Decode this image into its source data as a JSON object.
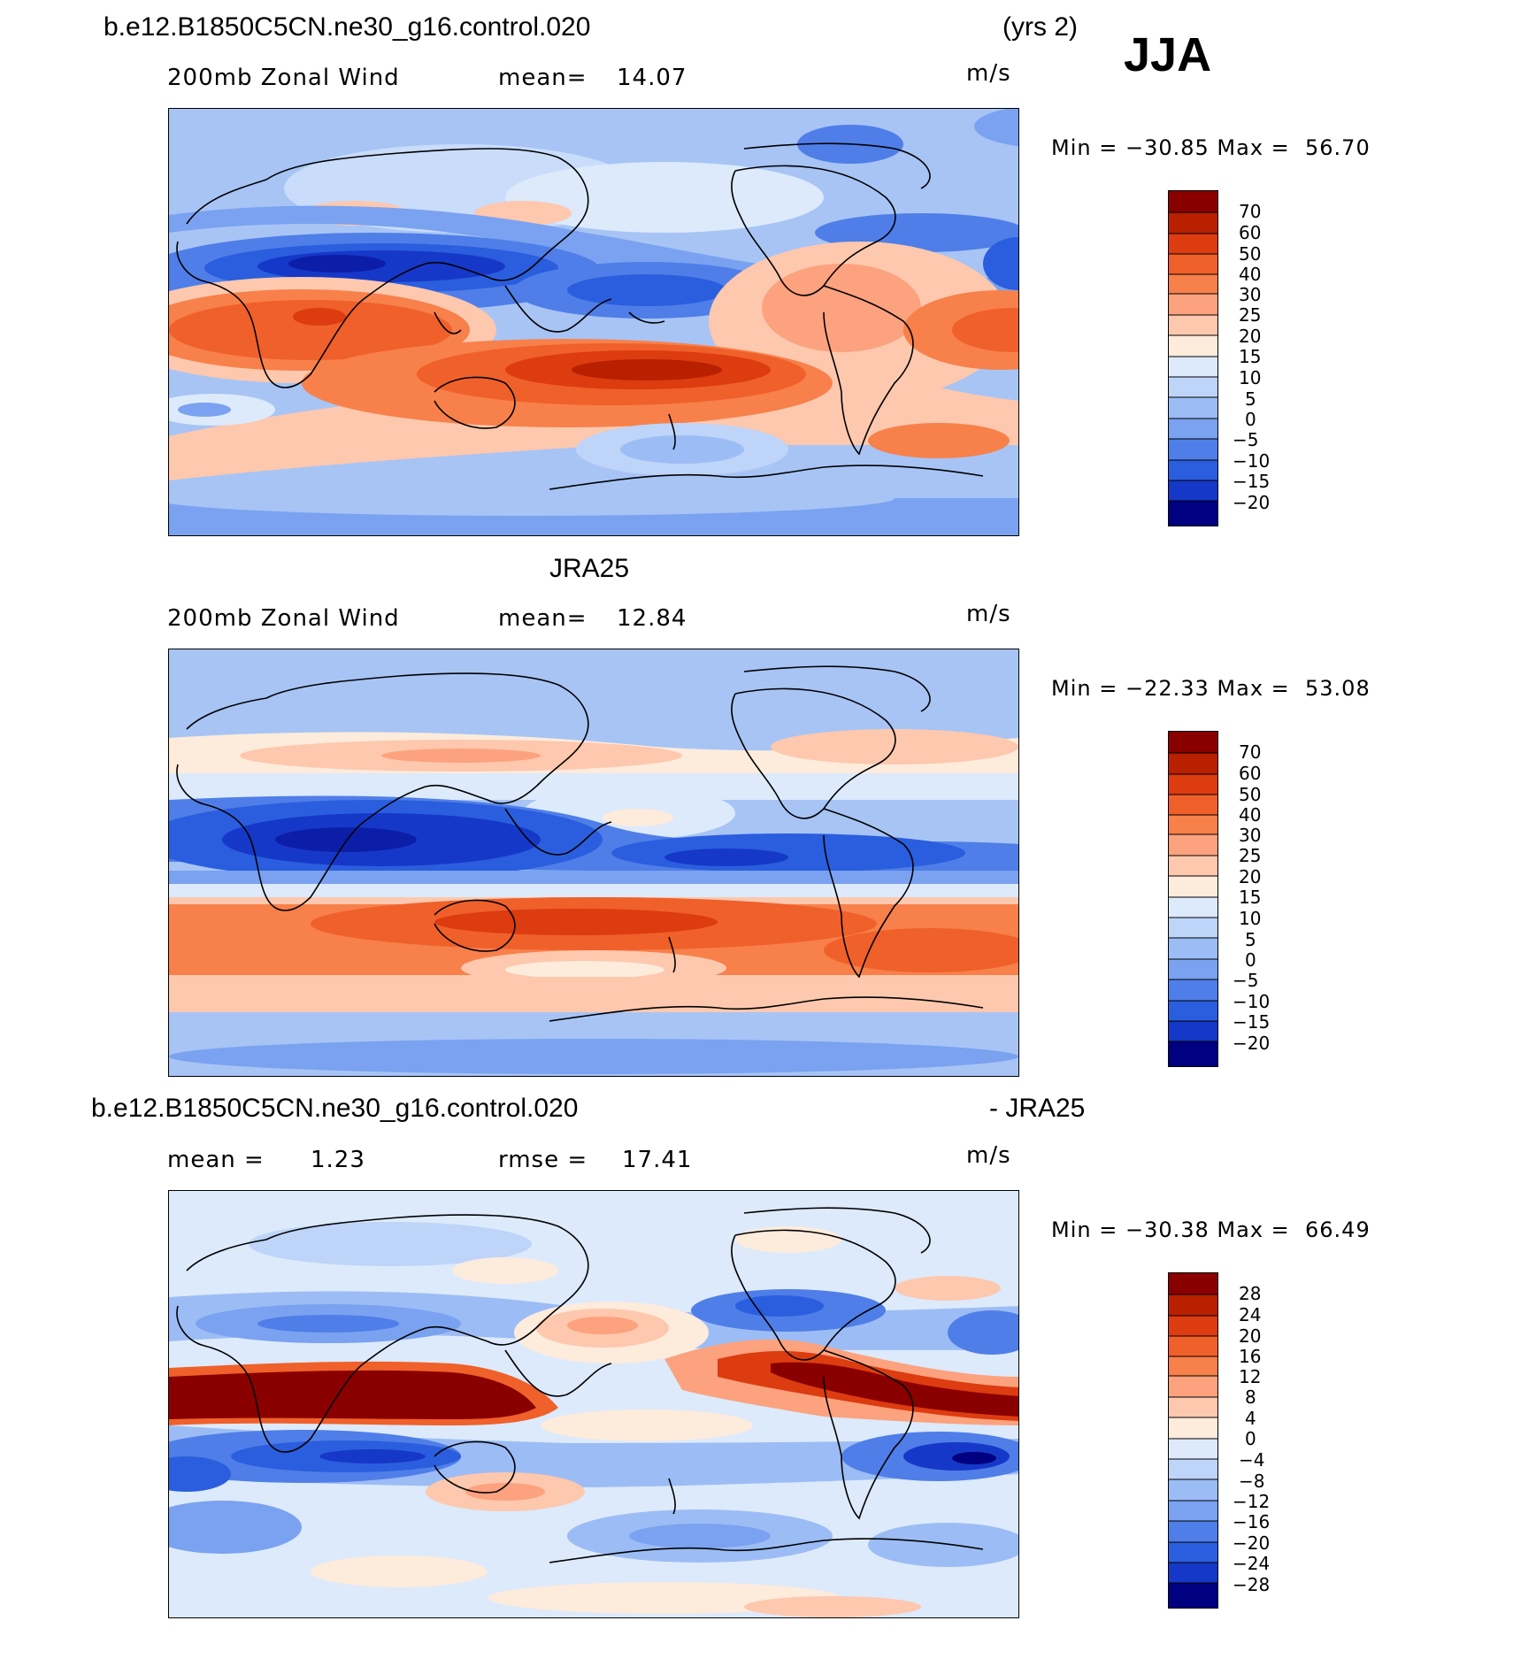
{
  "season": "JJA",
  "panels": [
    {
      "id": "model",
      "case_name": "b.e12.B1850C5CN.ne30_g16.control.020",
      "years": "(yrs 2)",
      "variable": "200mb Zonal Wind",
      "stat1_label": "mean=",
      "stat1_value": "14.07",
      "units": "m/s",
      "minmax": "Min = −30.85 Max =  56.70"
    },
    {
      "id": "obs",
      "title": "JRA25",
      "variable": "200mb Zonal Wind",
      "stat1_label": "mean=",
      "stat1_value": "12.84",
      "units": "m/s",
      "minmax": "Min = −22.33 Max =  53.08"
    },
    {
      "id": "diff",
      "case_name": "b.e12.B1850C5CN.ne30_g16.control.020",
      "diff_suffix": "- JRA25",
      "stat1_label": "mean =",
      "stat1_value": "1.23",
      "stat2_label": "rmse =",
      "stat2_value": "17.41",
      "units": "m/s",
      "minmax": "Min = −30.38 Max =  66.49"
    }
  ],
  "chart_data": [
    {
      "type": "heatmap",
      "title": "200mb Zonal Wind (b.e12.B1850C5CN.ne30_g16.control.020, JJA)",
      "units": "m/s",
      "mean": 14.07,
      "min": -30.85,
      "max": 56.7,
      "colorbar_levels": [
        "70",
        "60",
        "50",
        "40",
        "30",
        "25",
        "20",
        "15",
        "10",
        "5",
        "0",
        "−5",
        "−10",
        "−15",
        "−20"
      ],
      "colorbar_colors": [
        "#8a0000",
        "#b82000",
        "#dc3c10",
        "#f0602a",
        "#f8804a",
        "#fca27e",
        "#fdc8ae",
        "#fdebdc",
        "#dceafb",
        "#bed4f8",
        "#9cbcf5",
        "#7aa2f0",
        "#4f7ee8",
        "#2a5ede",
        "#1638c8",
        "#0c1ea8",
        "#000080"
      ]
    },
    {
      "type": "heatmap",
      "title": "200mb Zonal Wind (JRA25, JJA)",
      "units": "m/s",
      "mean": 12.84,
      "min": -22.33,
      "max": 53.08,
      "colorbar_levels": [
        "70",
        "60",
        "50",
        "40",
        "30",
        "25",
        "20",
        "15",
        "10",
        "5",
        "0",
        "−5",
        "−10",
        "−15",
        "−20"
      ],
      "colorbar_colors": [
        "#8a0000",
        "#b82000",
        "#dc3c10",
        "#f0602a",
        "#f8804a",
        "#fca27e",
        "#fdc8ae",
        "#fdebdc",
        "#dceafb",
        "#bed4f8",
        "#9cbcf5",
        "#7aa2f0",
        "#4f7ee8",
        "#2a5ede",
        "#1638c8",
        "#0c1ea8",
        "#000080"
      ]
    },
    {
      "type": "heatmap",
      "title": "200mb Zonal Wind difference (model - JRA25, JJA)",
      "units": "m/s",
      "mean": 1.23,
      "rmse": 17.41,
      "min": -30.38,
      "max": 66.49,
      "colorbar_levels": [
        "28",
        "24",
        "20",
        "16",
        "12",
        "8",
        "4",
        "0",
        "−4",
        "−8",
        "−12",
        "−16",
        "−20",
        "−24",
        "−28"
      ],
      "colorbar_colors": [
        "#8a0000",
        "#b82000",
        "#dc3c10",
        "#f0602a",
        "#f8804a",
        "#fca27e",
        "#fdc8ae",
        "#fdebdc",
        "#dceafb",
        "#bed4f8",
        "#9cbcf5",
        "#7aa2f0",
        "#4f7ee8",
        "#2a5ede",
        "#1638c8",
        "#0c1ea8",
        "#000080"
      ]
    }
  ]
}
